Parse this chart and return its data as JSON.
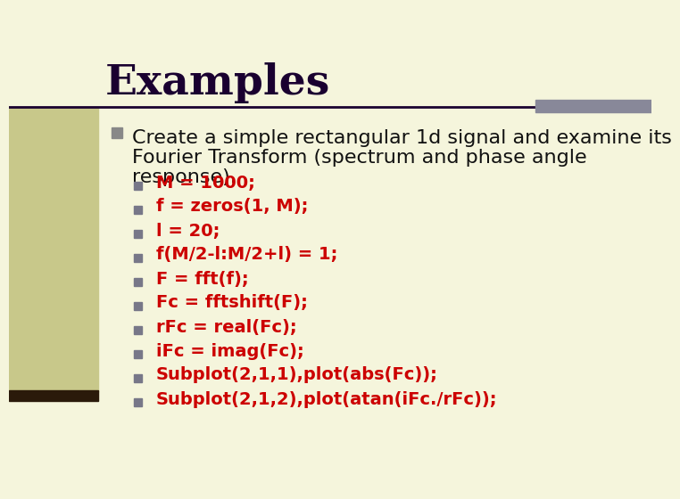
{
  "title": "Examples",
  "bg_color": "#f5f5dc",
  "left_panel_color": "#c8c88a",
  "left_panel_dark": "#2a1a0a",
  "title_color": "#1a0030",
  "title_fontsize": 34,
  "divider_color": "#1a0030",
  "accent_bar_color": "#888899",
  "bullet_main_color": "#888888",
  "bullet_code_color": "#777788",
  "main_text_lines": [
    "Create a simple rectangular 1d signal and examine its",
    "Fourier Transform (spectrum and phase angle",
    "response)."
  ],
  "main_text_fontsize": 16,
  "main_text_color": "#111111",
  "code_color": "#cc0000",
  "code_fontsize": 14,
  "code_lines": [
    "M = 1000;",
    "f = zeros(1, M);",
    "l = 20;",
    "f(M/2-l:M/2+l) = 1;",
    "F = fft(f);",
    "Fc = fftshift(F);",
    "rFc = real(Fc);",
    "iFc = imag(Fc);",
    "Subplot(2,1,1),plot(abs(Fc));",
    "Subplot(2,1,2),plot(atan(iFc./rFc));"
  ]
}
